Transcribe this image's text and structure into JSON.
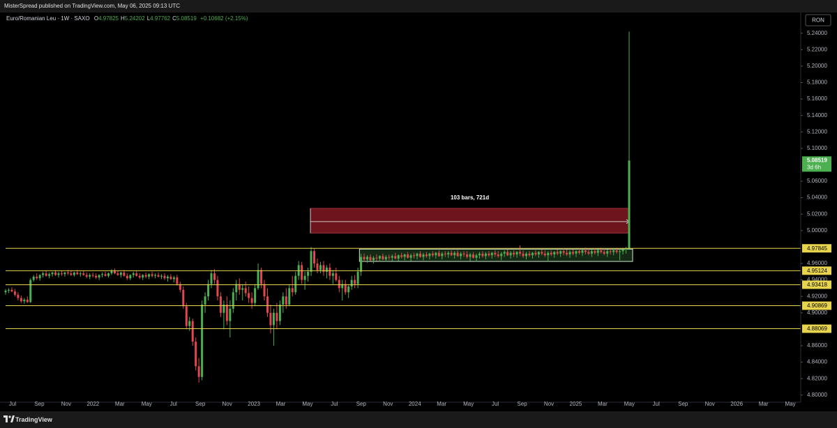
{
  "header": {
    "text": "MisterSpread published on TradingView.com, May 06, 2025 09:13 UTC"
  },
  "chart_data": {
    "type": "candlestick",
    "symbol": "Euro/Romanian Leu · 1W · SAXO",
    "ohlc": [
      {
        "label": "O",
        "value": 4.97825
      },
      {
        "label": "H",
        "value": 5.24202
      },
      {
        "label": "L",
        "value": 4.97762
      },
      {
        "label": "C",
        "value": 5.08519
      }
    ],
    "change": "+0.10682 (+2.15%)",
    "currency": "RON",
    "ylim": [
      4.793,
      5.255
    ],
    "yticks": [
      {
        "value": 4.8,
        "label": "4.80000"
      },
      {
        "value": 4.82,
        "label": "4.82000"
      },
      {
        "value": 4.84,
        "label": "4.84000"
      },
      {
        "value": 4.86,
        "label": "4.86000"
      },
      {
        "value": 4.9,
        "label": "4.90000"
      },
      {
        "value": 4.92,
        "label": "4.92000"
      },
      {
        "value": 4.94,
        "label": "4.94000"
      },
      {
        "value": 4.96,
        "label": "4.96000"
      },
      {
        "value": 5.0,
        "label": "5.00000"
      },
      {
        "value": 5.02,
        "label": "5.02000"
      },
      {
        "value": 5.04,
        "label": "5.04000"
      },
      {
        "value": 5.06,
        "label": "5.06000"
      },
      {
        "value": 5.1,
        "label": "5.10000"
      },
      {
        "value": 5.12,
        "label": "5.12000"
      },
      {
        "value": 5.14,
        "label": "5.14000"
      },
      {
        "value": 5.16,
        "label": "5.16000"
      },
      {
        "value": 5.18,
        "label": "5.18000"
      },
      {
        "value": 5.2,
        "label": "5.20000"
      },
      {
        "value": 5.22,
        "label": "5.22000"
      },
      {
        "value": 5.24,
        "label": "5.24000"
      }
    ],
    "x_labels": [
      "Jul",
      "Sep",
      "Nov",
      "2022",
      "Mar",
      "May",
      "Jul",
      "Sep",
      "Nov",
      "2023",
      "Mar",
      "May",
      "Jul",
      "Sep",
      "Nov",
      "2024",
      "Mar",
      "May",
      "Jul",
      "Sep",
      "Nov",
      "2025",
      "Mar",
      "May",
      "Jul",
      "Sep",
      "Nov",
      "2026",
      "Mar",
      "May"
    ],
    "up_color": "#4caf50",
    "down_color": "#e0474f",
    "candles": [
      [
        4.925,
        4.929,
        4.922,
        4.927
      ],
      [
        4.927,
        4.93,
        4.924,
        4.928
      ],
      [
        4.928,
        4.931,
        4.925,
        4.926
      ],
      [
        4.926,
        4.929,
        4.92,
        4.922
      ],
      [
        4.922,
        4.925,
        4.915,
        4.918
      ],
      [
        4.918,
        4.921,
        4.912,
        4.914
      ],
      [
        4.914,
        4.918,
        4.911,
        4.916
      ],
      [
        4.916,
        4.92,
        4.912,
        4.913
      ],
      [
        4.913,
        4.942,
        4.912,
        4.94
      ],
      [
        4.94,
        4.946,
        4.938,
        4.944
      ],
      [
        4.944,
        4.948,
        4.94,
        4.942
      ],
      [
        4.942,
        4.947,
        4.939,
        4.946
      ],
      [
        4.946,
        4.95,
        4.943,
        4.948
      ],
      [
        4.948,
        4.951,
        4.944,
        4.945
      ],
      [
        4.945,
        4.949,
        4.942,
        4.947
      ],
      [
        4.947,
        4.95,
        4.944,
        4.949
      ],
      [
        4.949,
        4.952,
        4.945,
        4.946
      ],
      [
        4.946,
        4.95,
        4.943,
        4.948
      ],
      [
        4.948,
        4.951,
        4.945,
        4.947
      ],
      [
        4.947,
        4.95,
        4.944,
        4.949
      ],
      [
        4.949,
        4.952,
        4.946,
        4.948
      ],
      [
        4.948,
        4.951,
        4.945,
        4.946
      ],
      [
        4.946,
        4.95,
        4.944,
        4.949
      ],
      [
        4.949,
        4.952,
        4.946,
        4.947
      ],
      [
        4.947,
        4.95,
        4.944,
        4.948
      ],
      [
        4.948,
        4.951,
        4.945,
        4.946
      ],
      [
        4.946,
        4.949,
        4.942,
        4.944
      ],
      [
        4.944,
        4.948,
        4.941,
        4.946
      ],
      [
        4.946,
        4.949,
        4.943,
        4.945
      ],
      [
        4.945,
        4.948,
        4.941,
        4.943
      ],
      [
        4.943,
        4.947,
        4.94,
        4.946
      ],
      [
        4.946,
        4.949,
        4.943,
        4.947
      ],
      [
        4.947,
        4.95,
        4.944,
        4.945
      ],
      [
        4.945,
        4.949,
        4.943,
        4.948
      ],
      [
        4.948,
        4.953,
        4.946,
        4.951
      ],
      [
        4.951,
        4.954,
        4.947,
        4.948
      ],
      [
        4.948,
        4.951,
        4.945,
        4.946
      ],
      [
        4.946,
        4.95,
        4.943,
        4.949
      ],
      [
        4.949,
        4.952,
        4.944,
        4.945
      ],
      [
        4.945,
        4.948,
        4.94,
        4.942
      ],
      [
        4.942,
        4.947,
        4.94,
        4.946
      ],
      [
        4.946,
        4.95,
        4.943,
        4.948
      ],
      [
        4.948,
        4.951,
        4.944,
        4.945
      ],
      [
        4.945,
        4.948,
        4.941,
        4.943
      ],
      [
        4.943,
        4.947,
        4.94,
        4.946
      ],
      [
        4.946,
        4.949,
        4.942,
        4.944
      ],
      [
        4.944,
        4.948,
        4.941,
        4.947
      ],
      [
        4.947,
        4.95,
        4.943,
        4.945
      ],
      [
        4.945,
        4.948,
        4.942,
        4.946
      ],
      [
        4.946,
        4.949,
        4.943,
        4.944
      ],
      [
        4.944,
        4.947,
        4.941,
        4.945
      ],
      [
        4.945,
        4.948,
        4.94,
        4.942
      ],
      [
        4.942,
        4.946,
        4.938,
        4.944
      ],
      [
        4.944,
        4.947,
        4.94,
        4.941
      ],
      [
        4.941,
        4.945,
        4.937,
        4.943
      ],
      [
        4.943,
        4.946,
        4.933,
        4.935
      ],
      [
        4.935,
        4.938,
        4.925,
        4.928
      ],
      [
        4.928,
        4.932,
        4.905,
        4.908
      ],
      [
        4.908,
        4.912,
        4.88,
        4.884
      ],
      [
        4.884,
        4.895,
        4.878,
        4.89
      ],
      [
        4.89,
        4.893,
        4.86,
        4.865
      ],
      [
        4.865,
        4.87,
        4.83,
        4.835
      ],
      [
        4.835,
        4.845,
        4.815,
        4.822
      ],
      [
        4.822,
        4.915,
        4.818,
        4.91
      ],
      [
        4.91,
        4.925,
        4.9,
        4.92
      ],
      [
        4.92,
        4.94,
        4.915,
        4.935
      ],
      [
        4.935,
        4.952,
        4.93,
        4.948
      ],
      [
        4.948,
        4.953,
        4.935,
        4.94
      ],
      [
        4.94,
        4.945,
        4.915,
        4.92
      ],
      [
        4.92,
        4.925,
        4.895,
        4.9
      ],
      [
        4.9,
        4.915,
        4.88,
        4.91
      ],
      [
        4.91,
        4.92,
        4.885,
        4.89
      ],
      [
        4.89,
        4.915,
        4.87,
        4.905
      ],
      [
        4.905,
        4.93,
        4.9,
        4.925
      ],
      [
        4.925,
        4.94,
        4.915,
        4.935
      ],
      [
        4.935,
        4.942,
        4.922,
        4.928
      ],
      [
        4.928,
        4.935,
        4.915,
        4.93
      ],
      [
        4.93,
        4.938,
        4.92,
        4.924
      ],
      [
        4.924,
        4.932,
        4.912,
        4.918
      ],
      [
        4.918,
        4.925,
        4.905,
        4.912
      ],
      [
        4.912,
        4.935,
        4.908,
        4.93
      ],
      [
        4.93,
        4.96,
        4.928,
        4.952
      ],
      [
        4.952,
        4.955,
        4.93,
        4.935
      ],
      [
        4.935,
        4.94,
        4.915,
        4.92
      ],
      [
        4.92,
        4.93,
        4.895,
        4.9
      ],
      [
        4.9,
        4.91,
        4.875,
        4.885
      ],
      [
        4.885,
        4.905,
        4.86,
        4.9
      ],
      [
        4.9,
        4.912,
        4.88,
        4.89
      ],
      [
        4.89,
        4.915,
        4.885,
        4.91
      ],
      [
        4.91,
        4.925,
        4.9,
        4.92
      ],
      [
        4.92,
        4.93,
        4.905,
        4.91
      ],
      [
        4.91,
        4.935,
        4.908,
        4.93
      ],
      [
        4.93,
        4.945,
        4.92,
        4.925
      ],
      [
        4.925,
        4.95,
        4.922,
        4.945
      ],
      [
        4.945,
        4.963,
        4.94,
        4.958
      ],
      [
        4.958,
        4.962,
        4.935,
        4.94
      ],
      [
        4.94,
        4.95,
        4.928,
        4.945
      ],
      [
        4.945,
        4.955,
        4.938,
        4.95
      ],
      [
        4.95,
        4.98,
        4.945,
        4.975
      ],
      [
        4.975,
        4.978,
        4.955,
        4.96
      ],
      [
        4.96,
        4.966,
        4.948,
        4.952
      ],
      [
        4.952,
        4.962,
        4.948,
        4.958
      ],
      [
        4.958,
        4.963,
        4.945,
        4.95
      ],
      [
        4.95,
        4.958,
        4.942,
        4.955
      ],
      [
        4.955,
        4.96,
        4.94,
        4.945
      ],
      [
        4.945,
        4.952,
        4.935,
        4.948
      ],
      [
        4.948,
        4.955,
        4.938,
        4.94
      ],
      [
        4.94,
        4.945,
        4.925,
        4.93
      ],
      [
        4.93,
        4.94,
        4.915,
        4.935
      ],
      [
        4.935,
        4.94,
        4.922,
        4.925
      ],
      [
        4.925,
        4.935,
        4.918,
        4.932
      ],
      [
        4.932,
        4.945,
        4.928,
        4.94
      ],
      [
        4.94,
        4.946,
        4.93,
        4.935
      ],
      [
        4.935,
        4.955,
        4.93,
        4.95
      ],
      [
        4.95,
        4.972,
        4.945,
        4.968
      ],
      [
        4.968,
        4.972,
        4.962,
        4.965
      ],
      [
        4.965,
        4.97,
        4.961,
        4.968
      ],
      [
        4.968,
        4.971,
        4.963,
        4.964
      ],
      [
        4.964,
        4.969,
        4.96,
        4.967
      ],
      [
        4.967,
        4.971,
        4.963,
        4.966
      ],
      [
        4.966,
        4.97,
        4.962,
        4.969
      ],
      [
        4.969,
        4.972,
        4.964,
        4.965
      ],
      [
        4.965,
        4.97,
        4.962,
        4.968
      ],
      [
        4.968,
        4.971,
        4.964,
        4.967
      ],
      [
        4.967,
        4.971,
        4.963,
        4.969
      ],
      [
        4.969,
        4.973,
        4.965,
        4.966
      ],
      [
        4.966,
        4.971,
        4.963,
        4.97
      ],
      [
        4.97,
        4.973,
        4.966,
        4.968
      ],
      [
        4.968,
        4.972,
        4.964,
        4.971
      ],
      [
        4.971,
        4.974,
        4.966,
        4.967
      ],
      [
        4.967,
        4.972,
        4.963,
        4.97
      ],
      [
        4.97,
        4.973,
        4.966,
        4.969
      ],
      [
        4.969,
        4.973,
        4.965,
        4.972
      ],
      [
        4.972,
        4.975,
        4.967,
        4.968
      ],
      [
        4.968,
        4.973,
        4.964,
        4.971
      ],
      [
        4.971,
        4.974,
        4.967,
        4.969
      ],
      [
        4.969,
        4.973,
        4.965,
        4.972
      ],
      [
        4.972,
        4.975,
        4.968,
        4.97
      ],
      [
        4.97,
        4.974,
        4.966,
        4.973
      ],
      [
        4.973,
        4.976,
        4.968,
        4.969
      ],
      [
        4.969,
        4.974,
        4.965,
        4.972
      ],
      [
        4.972,
        4.975,
        4.968,
        4.971
      ],
      [
        4.971,
        4.975,
        4.967,
        4.973
      ],
      [
        4.973,
        4.976,
        4.969,
        4.97
      ],
      [
        4.97,
        4.975,
        4.966,
        4.973
      ],
      [
        4.973,
        4.976,
        4.968,
        4.969
      ],
      [
        4.969,
        4.974,
        4.965,
        4.972
      ],
      [
        4.972,
        4.975,
        4.968,
        4.971
      ],
      [
        4.971,
        4.975,
        4.966,
        4.968
      ],
      [
        4.968,
        4.973,
        4.963,
        4.971
      ],
      [
        4.971,
        4.974,
        4.966,
        4.967
      ],
      [
        4.967,
        4.972,
        4.962,
        4.97
      ],
      [
        4.97,
        4.974,
        4.966,
        4.972
      ],
      [
        4.972,
        4.975,
        4.967,
        4.969
      ],
      [
        4.969,
        4.974,
        4.965,
        4.972
      ],
      [
        4.972,
        4.975,
        4.968,
        4.97
      ],
      [
        4.97,
        4.974,
        4.966,
        4.973
      ],
      [
        4.973,
        4.976,
        4.968,
        4.971
      ],
      [
        4.971,
        4.975,
        4.967,
        4.969
      ],
      [
        4.969,
        4.974,
        4.964,
        4.972
      ],
      [
        4.972,
        4.976,
        4.968,
        4.974
      ],
      [
        4.974,
        4.977,
        4.969,
        4.97
      ],
      [
        4.97,
        4.975,
        4.966,
        4.973
      ],
      [
        4.973,
        4.976,
        4.968,
        4.971
      ],
      [
        4.971,
        4.975,
        4.967,
        4.974
      ],
      [
        4.974,
        4.982,
        4.969,
        4.972
      ],
      [
        4.972,
        4.976,
        4.967,
        4.969
      ],
      [
        4.969,
        4.974,
        4.965,
        4.972
      ],
      [
        4.972,
        4.975,
        4.968,
        4.97
      ],
      [
        4.97,
        4.974,
        4.966,
        4.973
      ],
      [
        4.973,
        4.976,
        4.969,
        4.971
      ],
      [
        4.971,
        4.975,
        4.967,
        4.974
      ],
      [
        4.974,
        4.977,
        4.97,
        4.972
      ],
      [
        4.972,
        4.976,
        4.968,
        4.97
      ],
      [
        4.97,
        4.975,
        4.962,
        4.973
      ],
      [
        4.973,
        4.976,
        4.969,
        4.971
      ],
      [
        4.971,
        4.975,
        4.967,
        4.974
      ],
      [
        4.974,
        4.977,
        4.97,
        4.972
      ],
      [
        4.972,
        4.976,
        4.968,
        4.975
      ],
      [
        4.975,
        4.978,
        4.97,
        4.973
      ],
      [
        4.973,
        4.977,
        4.969,
        4.971
      ],
      [
        4.971,
        4.976,
        4.967,
        4.974
      ],
      [
        4.974,
        4.977,
        4.97,
        4.972
      ],
      [
        4.972,
        4.976,
        4.968,
        4.975
      ],
      [
        4.975,
        4.978,
        4.971,
        4.973
      ],
      [
        4.973,
        4.977,
        4.969,
        4.976
      ],
      [
        4.976,
        4.979,
        4.971,
        4.974
      ],
      [
        4.974,
        4.978,
        4.97,
        4.972
      ],
      [
        4.972,
        4.977,
        4.968,
        4.975
      ],
      [
        4.975,
        4.978,
        4.971,
        4.973
      ],
      [
        4.973,
        4.977,
        4.969,
        4.976
      ],
      [
        4.976,
        4.979,
        4.972,
        4.974
      ],
      [
        4.974,
        4.978,
        4.97,
        4.972
      ],
      [
        4.972,
        4.977,
        4.968,
        4.975
      ],
      [
        4.975,
        4.978,
        4.971,
        4.974
      ],
      [
        4.974,
        4.978,
        4.97,
        4.976
      ],
      [
        4.976,
        4.979,
        4.972,
        4.974
      ],
      [
        4.974,
        4.978,
        4.964,
        4.975
      ],
      [
        4.975,
        4.979,
        4.971,
        4.977
      ],
      [
        4.977,
        4.98,
        4.972,
        4.978
      ],
      [
        4.97825,
        5.24202,
        4.97762,
        5.08519
      ]
    ],
    "levels": [
      4.97845,
      4.95124,
      4.93418,
      4.90869,
      4.88069
    ],
    "level_color": "#e8d44d",
    "measure": {
      "label": "103 bars, 721d",
      "top": 5.027,
      "bottom": 4.997,
      "arrow": 5.011
    },
    "range_box": {
      "top": 4.9775,
      "bottom": 4.9625
    },
    "last_price": {
      "value": 5.08519,
      "countdown": "3d 6h"
    }
  },
  "footer": {
    "brand": "TradingView"
  }
}
